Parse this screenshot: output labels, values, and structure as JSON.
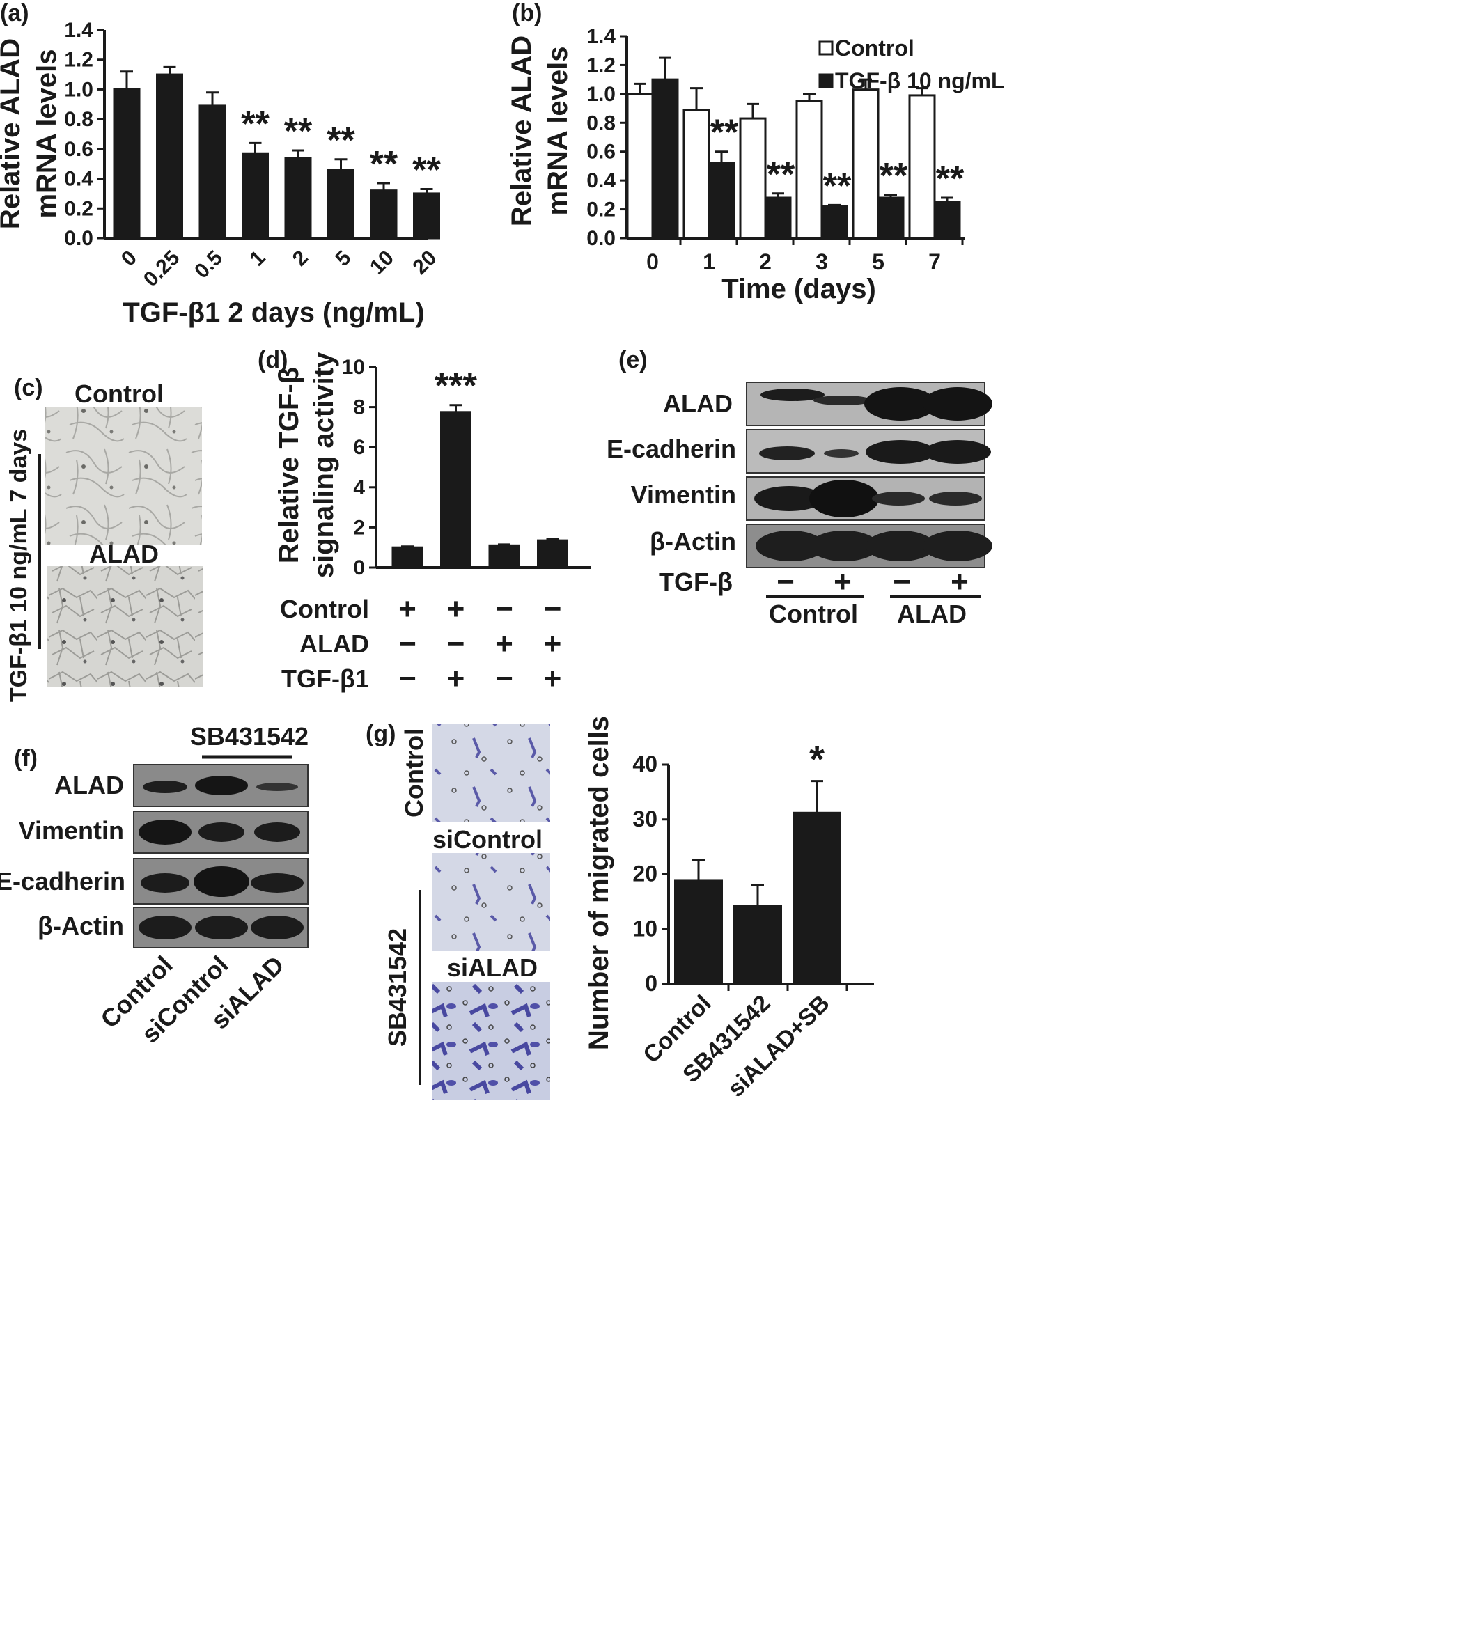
{
  "colors": {
    "bar": "#1a1a1a",
    "open": "#ffffff",
    "band": "#1c1c1c"
  },
  "panels": {
    "a": {
      "letter": "(a)"
    },
    "b": {
      "letter": "(b)"
    },
    "c": {
      "letter": "(c)",
      "top_label": "Control",
      "bottom_label": "ALAD",
      "side_label": "TGF-β1 10 ng/mL 7 days"
    },
    "d": {
      "letter": "(d)"
    },
    "e": {
      "letter": "(e)",
      "row_labels": [
        "ALAD",
        "E-cadherin",
        "Vimentin",
        "β-Actin"
      ],
      "cond_label": "TGF-β",
      "cond_signs": [
        "−",
        "+",
        "−",
        "+"
      ],
      "group_labels": [
        "Control",
        "ALAD"
      ]
    },
    "f": {
      "letter": "(f)",
      "treatment_label": "SB431542",
      "row_labels": [
        "ALAD",
        "Vimentin",
        "E-cadherin",
        "β-Actin"
      ],
      "lane_labels": [
        "Control",
        "siControl",
        "siALAD"
      ]
    },
    "g": {
      "letter": "(g)",
      "img_labels": [
        "Control",
        "siControl",
        "siALAD"
      ],
      "side_label": "SB431542"
    }
  },
  "chart_data": [
    {
      "id": "a",
      "type": "bar",
      "categories": [
        "0",
        "0.25",
        "0.5",
        "1",
        "2",
        "5",
        "10",
        "20"
      ],
      "values": [
        1.0,
        1.1,
        0.89,
        0.57,
        0.54,
        0.46,
        0.32,
        0.3
      ],
      "errors": [
        0.12,
        0.05,
        0.09,
        0.07,
        0.05,
        0.07,
        0.05,
        0.03
      ],
      "sig": [
        "",
        "",
        "",
        "**",
        "**",
        "**",
        "**",
        "**"
      ],
      "xlabel": "TGF-β1 2 days (ng/mL)",
      "ylabel": [
        "Relative ALAD",
        "mRNA levels"
      ],
      "ylim": [
        0,
        1.4
      ],
      "yticks": [
        "0.0",
        "0.2",
        "0.4",
        "0.6",
        "0.8",
        "1.0",
        "1.2",
        "1.4"
      ],
      "grid": false
    },
    {
      "id": "b",
      "type": "bar",
      "categories": [
        "0",
        "1",
        "2",
        "3",
        "5",
        "7"
      ],
      "series": [
        {
          "name": "Control",
          "values": [
            1.0,
            0.89,
            0.83,
            0.95,
            1.03,
            0.99
          ],
          "errors": [
            0.07,
            0.15,
            0.1,
            0.05,
            0.07,
            0.05
          ]
        },
        {
          "name": "TGF-β  10 ng/mL",
          "values": [
            1.1,
            0.52,
            0.28,
            0.22,
            0.28,
            0.25
          ],
          "errors": [
            0.15,
            0.08,
            0.03,
            0.01,
            0.02,
            0.03
          ]
        }
      ],
      "sig": [
        "",
        "**",
        "**",
        "**",
        "**",
        "**"
      ],
      "xlabel": "Time (days)",
      "ylabel": [
        "Relative ALAD",
        "mRNA levels"
      ],
      "ylim": [
        0,
        1.4
      ],
      "yticks": [
        "0.0",
        "0.2",
        "0.4",
        "0.6",
        "0.8",
        "1.0",
        "1.2",
        "1.4"
      ],
      "legend": "top-right",
      "grid": false
    },
    {
      "id": "d",
      "type": "bar",
      "categories": [
        "1",
        "2",
        "3",
        "4"
      ],
      "values": [
        1.0,
        7.75,
        1.1,
        1.35
      ],
      "errors": [
        0.05,
        0.35,
        0.05,
        0.08
      ],
      "sig": [
        "",
        "***",
        "",
        ""
      ],
      "ylabel": [
        "Relative TGF-β",
        "signaling activity"
      ],
      "ylim": [
        0,
        10
      ],
      "yticks": [
        "0",
        "2",
        "4",
        "6",
        "8",
        "10"
      ],
      "conditions": [
        {
          "label": "Control",
          "signs": [
            "+",
            "+",
            "−",
            "−"
          ]
        },
        {
          "label": "ALAD",
          "signs": [
            "−",
            "−",
            "+",
            "+"
          ]
        },
        {
          "label": "TGF-β1",
          "signs": [
            "−",
            "+",
            "−",
            "+"
          ]
        }
      ],
      "grid": false
    },
    {
      "id": "g",
      "type": "bar",
      "categories": [
        "Control",
        "SB431542",
        "siALAD+SB"
      ],
      "values": [
        18.8,
        14.2,
        31.2
      ],
      "errors": [
        3.8,
        3.8,
        5.8
      ],
      "sig": [
        "",
        "",
        "*"
      ],
      "ylabel": [
        "Number of migrated cells"
      ],
      "ylim": [
        0,
        40
      ],
      "yticks": [
        "0",
        "10",
        "20",
        "30",
        "40"
      ],
      "grid": false
    }
  ]
}
